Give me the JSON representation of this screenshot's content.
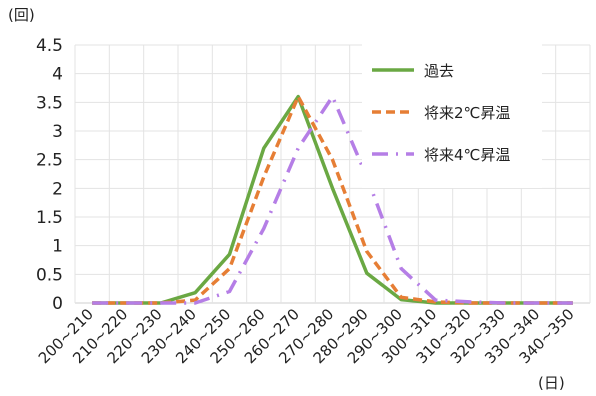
{
  "chart_data": {
    "type": "line",
    "title": "",
    "ylabel": "(回)",
    "xlabel": "(日)",
    "ylim": [
      0,
      4.5
    ],
    "ytick_step": 0.5,
    "yticks": [
      "0",
      "0.5",
      "1",
      "1.5",
      "2",
      "2.5",
      "3",
      "3.5",
      "4",
      "4.5"
    ],
    "categories": [
      "200~210",
      "210~220",
      "220~230",
      "230~240",
      "240~250",
      "250~260",
      "260~270",
      "270~280",
      "280~290",
      "290~300",
      "300~310",
      "310~320",
      "320~330",
      "330~340",
      "340~350"
    ],
    "grid": true,
    "legend_position": "top-right",
    "series": [
      {
        "name": "過去",
        "color": "#6aa843",
        "style": "solid",
        "values": [
          0,
          0,
          0,
          0.18,
          0.85,
          2.7,
          3.6,
          2.0,
          0.52,
          0.06,
          0,
          0,
          0,
          0,
          0
        ]
      },
      {
        "name": "将来2℃昇温",
        "color": "#e67e35",
        "style": "dashed",
        "values": [
          0,
          0,
          0,
          0.05,
          0.6,
          2.2,
          3.6,
          2.5,
          0.9,
          0.1,
          0.02,
          0,
          0,
          0,
          0
        ]
      },
      {
        "name": "将来4℃昇温",
        "color": "#b57ee6",
        "style": "dashdot",
        "values": [
          0,
          0,
          0,
          0,
          0.2,
          1.3,
          2.7,
          3.6,
          2.2,
          0.6,
          0.05,
          0.02,
          0,
          0,
          0
        ]
      }
    ]
  }
}
